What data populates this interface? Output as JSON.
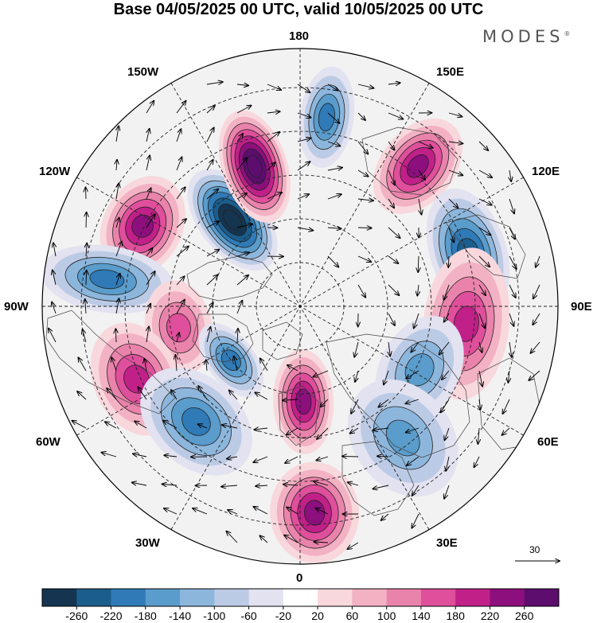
{
  "header": {
    "title": "Base 04/05/2025 00 UTC, valid 10/05/2025 00 UTC",
    "brand": "MODES",
    "brand_mark": "®"
  },
  "map": {
    "projection": "north-polar-stereographic",
    "longitude_labels": {
      "lon_180": "180",
      "lon_150w": "150W",
      "lon_150e": "150E",
      "lon_120w": "120W",
      "lon_120e": "120E",
      "lon_90w": "90W",
      "lon_90e": "90E",
      "lon_60w": "60W",
      "lon_60e": "60E",
      "lon_30w": "30W",
      "lon_30e": "30E",
      "lon_0": "0"
    },
    "anomaly_centers": [
      {
        "lon": -142,
        "value": -260
      },
      {
        "lon": -162,
        "value": 260
      },
      {
        "lon": 172,
        "value": -140
      },
      {
        "lon": 140,
        "value": 180
      },
      {
        "lon": 108,
        "value": -180
      },
      {
        "lon": 84,
        "value": 140
      },
      {
        "lon": 62,
        "value": -100
      },
      {
        "lon": -117,
        "value": 180
      },
      {
        "lon": -98,
        "value": -160
      },
      {
        "lon": -80,
        "value": 100
      },
      {
        "lon": -66,
        "value": 140
      },
      {
        "lon": -42,
        "value": -140
      },
      {
        "lon": -52,
        "value": -140
      },
      {
        "lon": 2,
        "value": 180
      },
      {
        "lon": 4,
        "value": 180
      },
      {
        "lon": 38,
        "value": -100
      }
    ]
  },
  "vector_reference": {
    "label": "30",
    "value": 30
  },
  "colorbar": {
    "ticks": [
      "-260",
      "-220",
      "-180",
      "-140",
      "-100",
      "-60",
      "-20",
      "20",
      "60",
      "100",
      "140",
      "180",
      "220",
      "260"
    ],
    "colors": [
      "#14344f",
      "#1b5d8c",
      "#2f7ab7",
      "#5a9ccb",
      "#8db6dc",
      "#bccbe5",
      "#e2e2f0",
      "#ffffff",
      "#f8d8dd",
      "#f3b1c4",
      "#ea83ab",
      "#df4f9b",
      "#c02088",
      "#8c0f7d",
      "#5c0d6e"
    ]
  }
}
